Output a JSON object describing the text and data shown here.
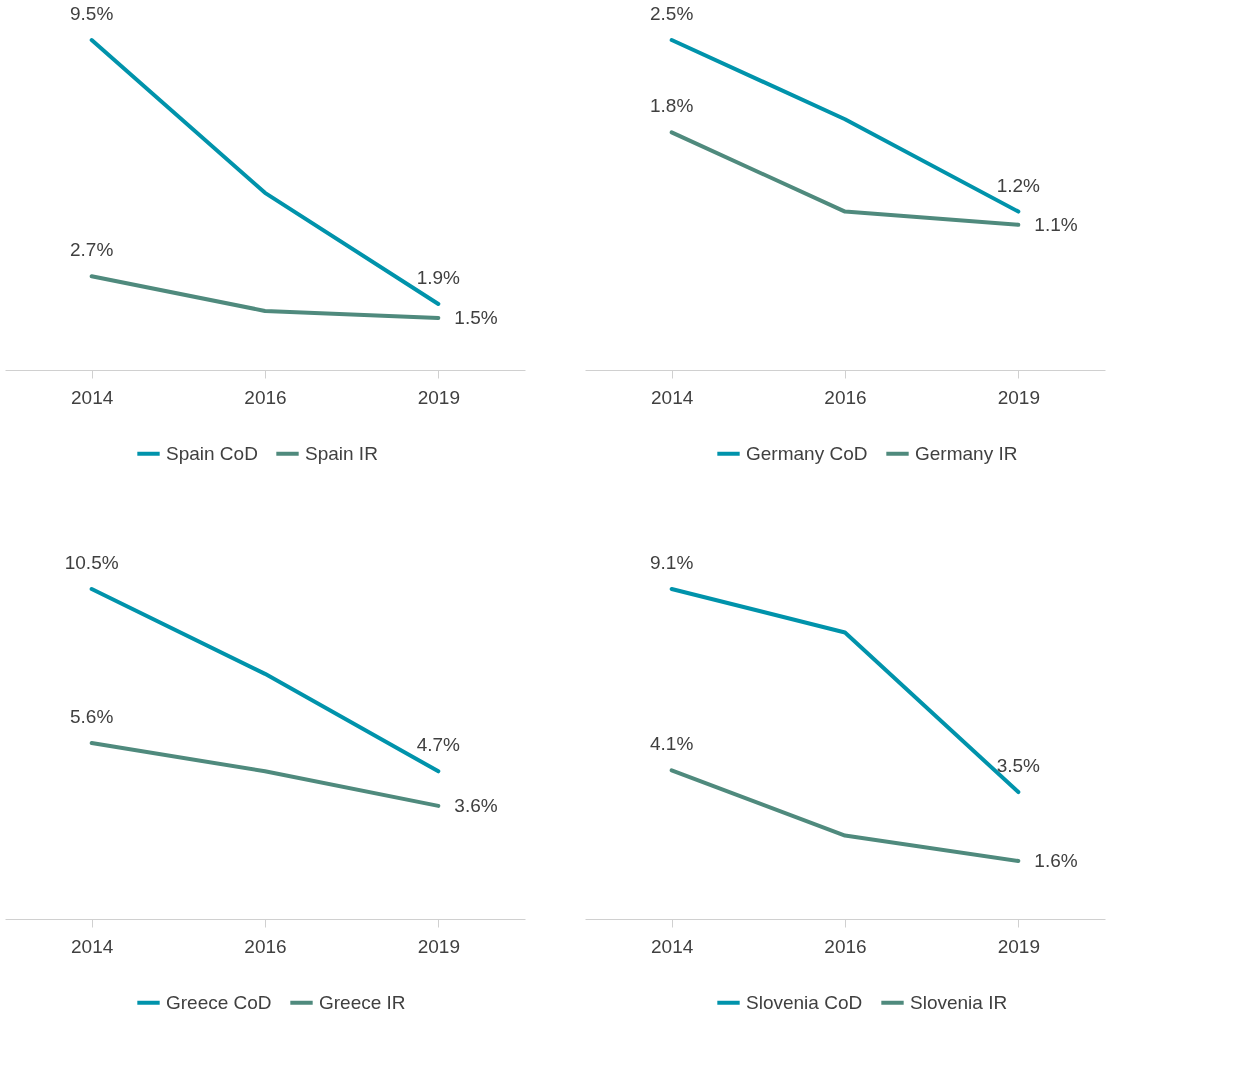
{
  "chart_data": [
    {
      "type": "line",
      "categories": [
        "2014",
        "2016",
        "2019"
      ],
      "legend": "bottom",
      "grid": false,
      "marker": "none",
      "line_style": "solid",
      "series": [
        {
          "name": "Spain CoD",
          "color": "#0093ab",
          "values": [
            9.5,
            5.1,
            1.9
          ],
          "value_labels": [
            "9.5%",
            null,
            "1.9%"
          ]
        },
        {
          "name": "Spain IR",
          "color": "#4f8a7d",
          "values": [
            2.7,
            1.7,
            1.5
          ],
          "value_labels": [
            "2.7%",
            null,
            "1.5%"
          ]
        }
      ]
    },
    {
      "type": "line",
      "categories": [
        "2014",
        "2016",
        "2019"
      ],
      "legend": "bottom",
      "grid": false,
      "marker": "none",
      "line_style": "solid",
      "series": [
        {
          "name": "Germany CoD",
          "color": "#0093ab",
          "values": [
            2.5,
            1.9,
            1.2
          ],
          "value_labels": [
            "2.5%",
            null,
            "1.2%"
          ]
        },
        {
          "name": "Germany IR",
          "color": "#4f8a7d",
          "values": [
            1.8,
            1.2,
            1.1
          ],
          "value_labels": [
            "1.8%",
            null,
            "1.1%"
          ]
        }
      ]
    },
    {
      "type": "line",
      "categories": [
        "2014",
        "2016",
        "2019"
      ],
      "legend": "bottom",
      "grid": false,
      "marker": "none",
      "line_style": "solid",
      "series": [
        {
          "name": "Greece CoD",
          "color": "#0093ab",
          "values": [
            10.5,
            7.8,
            4.7
          ],
          "value_labels": [
            "10.5%",
            null,
            "4.7%"
          ]
        },
        {
          "name": "Greece IR",
          "color": "#4f8a7d",
          "values": [
            5.6,
            4.7,
            3.6
          ],
          "value_labels": [
            "5.6%",
            null,
            "3.6%"
          ]
        }
      ]
    },
    {
      "type": "line",
      "categories": [
        "2014",
        "2016",
        "2019"
      ],
      "legend": "bottom",
      "grid": false,
      "marker": "none",
      "line_style": "solid",
      "series": [
        {
          "name": "Slovenia CoD",
          "color": "#0093ab",
          "values": [
            9.1,
            7.9,
            3.5
          ],
          "value_labels": [
            "9.1%",
            null,
            "3.5%"
          ]
        },
        {
          "name": "Slovenia IR",
          "color": "#4f8a7d",
          "values": [
            4.1,
            2.3,
            1.6
          ],
          "value_labels": [
            "4.1%",
            null,
            "1.6%"
          ]
        }
      ]
    }
  ]
}
